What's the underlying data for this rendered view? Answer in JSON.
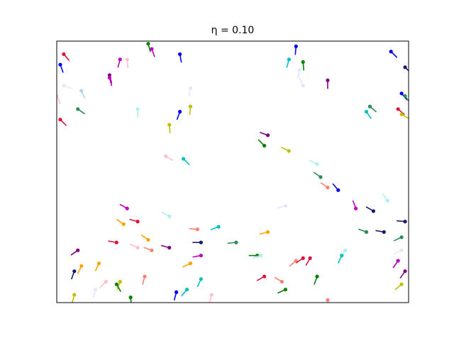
{
  "chart_data": {
    "type": "particles",
    "title": "η = 0.10",
    "xlim": [
      0,
      1
    ],
    "ylim": [
      0,
      1
    ],
    "x": [
      0.02,
      0.01,
      0.18,
      0.2,
      0.26,
      0.27,
      0.35,
      0.15,
      0.15,
      0.02,
      0.07,
      0.0,
      0.06,
      0.01,
      0.23,
      0.35,
      0.38,
      0.32,
      0.38,
      0.68,
      0.66,
      0.7,
      0.69,
      0.7,
      0.77,
      0.95,
      0.99,
      0.98,
      0.99,
      0.89,
      0.88,
      0.97,
      0.98,
      0.6,
      0.59,
      0.66,
      0.31,
      0.36,
      0.74,
      0.75,
      0.77,
      0.8,
      0.94,
      0.85,
      0.9,
      0.65,
      0.2,
      0.32,
      0.23,
      0.19,
      0.26,
      0.17,
      0.23,
      0.27,
      0.32,
      0.4,
      0.46,
      0.41,
      0.51,
      0.6,
      0.41,
      0.38,
      0.57,
      0.58,
      0.99,
      0.88,
      0.93,
      0.98,
      0.98,
      0.97,
      0.97,
      0.99,
      0.98,
      0.82,
      0.81,
      0.68,
      0.7,
      0.72,
      0.59,
      0.64,
      0.74,
      0.65,
      0.77,
      0.44,
      0.41,
      0.37,
      0.34,
      0.25,
      0.06,
      0.05,
      0.07,
      0.12,
      0.14,
      0.18,
      0.17,
      0.11,
      0.05,
      0.21
    ],
    "y": [
      0.95,
      0.91,
      0.93,
      0.93,
      0.99,
      0.97,
      0.95,
      0.87,
      0.86,
      0.83,
      0.81,
      0.79,
      0.74,
      0.7,
      0.74,
      0.73,
      0.75,
      0.68,
      0.82,
      0.98,
      0.93,
      0.92,
      0.89,
      0.83,
      0.85,
      0.96,
      0.9,
      0.8,
      0.79,
      0.75,
      0.73,
      0.74,
      0.72,
      0.64,
      0.6,
      0.58,
      0.56,
      0.55,
      0.53,
      0.48,
      0.44,
      0.43,
      0.39,
      0.36,
      0.35,
      0.37,
      0.36,
      0.33,
      0.31,
      0.3,
      0.24,
      0.23,
      0.21,
      0.2,
      0.21,
      0.28,
      0.29,
      0.23,
      0.23,
      0.27,
      0.18,
      0.15,
      0.18,
      0.18,
      0.31,
      0.27,
      0.27,
      0.25,
      0.2,
      0.16,
      0.16,
      0.12,
      0.07,
      0.2,
      0.18,
      0.16,
      0.17,
      0.17,
      0.1,
      0.08,
      0.1,
      0.05,
      0.01,
      0.03,
      0.09,
      0.05,
      0.04,
      0.1,
      0.2,
      0.12,
      0.14,
      0.15,
      0.08,
      0.08,
      0.07,
      0.05,
      0.03,
      0.02
    ],
    "angles": [
      130,
      110,
      75,
      95,
      105,
      110,
      100,
      105,
      105,
      160,
      115,
      115,
      145,
      135,
      90,
      70,
      85,
      95,
      80,
      85,
      75,
      95,
      80,
      -65,
      90,
      135,
      135,
      130,
      125,
      140,
      125,
      140,
      150,
      -20,
      -45,
      -25,
      150,
      135,
      -25,
      -35,
      -35,
      -50,
      -55,
      -70,
      -30,
      15,
      -30,
      -30,
      -15,
      -35,
      -35,
      -10,
      -25,
      -20,
      -15,
      -5,
      20,
      0,
      5,
      15,
      10,
      25,
      0,
      15,
      -5,
      -20,
      -10,
      25,
      25,
      55,
      55,
      55,
      40,
      60,
      65,
      40,
      35,
      60,
      30,
      -30,
      70,
      25,
      100,
      75,
      65,
      50,
      75,
      75,
      35,
      70,
      65,
      65,
      45,
      70,
      120,
      75,
      75,
      95
    ],
    "colors": [
      "#dc143c",
      "#0000ff",
      "#bf00bf",
      "#ffc0cb",
      "#008000",
      "#bf00bf",
      "#0000ff",
      "#800080",
      "#bf00bf",
      "#e6e6fa",
      "#add8e6",
      "#ffc0cb",
      "#2e8b57",
      "#dc143c",
      "#afeeee",
      "#0000ff",
      "#bfbf00",
      "#bfbf00",
      "#e6e6fa",
      "#0000ff",
      "#00bfbf",
      "#008000",
      "#e6e6fa",
      "#e6e6fa",
      "#800080",
      "#0000ff",
      "#191970",
      "#0000ff",
      "#2e8b57",
      "#2e8b57",
      "#00bfbf",
      "#dc143c",
      "#bfbf00",
      "#800080",
      "#008000",
      "#bfbf00",
      "#ffc0cb",
      "#00bfbf",
      "#afeeee",
      "#2e8b57",
      "#fa8072",
      "#0000ff",
      "#afeeee",
      "#bf00bf",
      "#191970",
      "#e6e6fa",
      "#bf00bf",
      "#afeeee",
      "#dc143c",
      "#ffa500",
      "#ffa500",
      "#dc143c",
      "#ffc0cb",
      "#fa8072",
      "#800080",
      "#fa8072",
      "#00bfbf",
      "#191970",
      "#2e8b57",
      "#ffa500",
      "#bf00bf",
      "#ffa500",
      "#008000",
      "#afeeee",
      "#191970",
      "#2e8b57",
      "#191970",
      "#2e8b57",
      "#e6e6fa",
      "#191970",
      "#bf00bf",
      "#800080",
      "#bfbf00",
      "#afeeee",
      "#00bfbf",
      "#fa8072",
      "#dc143c",
      "#dc143c",
      "#dc143c",
      "#fa8072",
      "#008000",
      "#008000",
      "#fa8072",
      "#ffc0cb",
      "#00bfbf",
      "#00bfbf",
      "#0000ff",
      "#fa8072",
      "#800080",
      "#191970",
      "#ffa500",
      "#ffa500",
      "#ffc0cb",
      "#bfbf00",
      "#008000",
      "#e6e6fa",
      "#bfbf00",
      "#008000"
    ]
  }
}
